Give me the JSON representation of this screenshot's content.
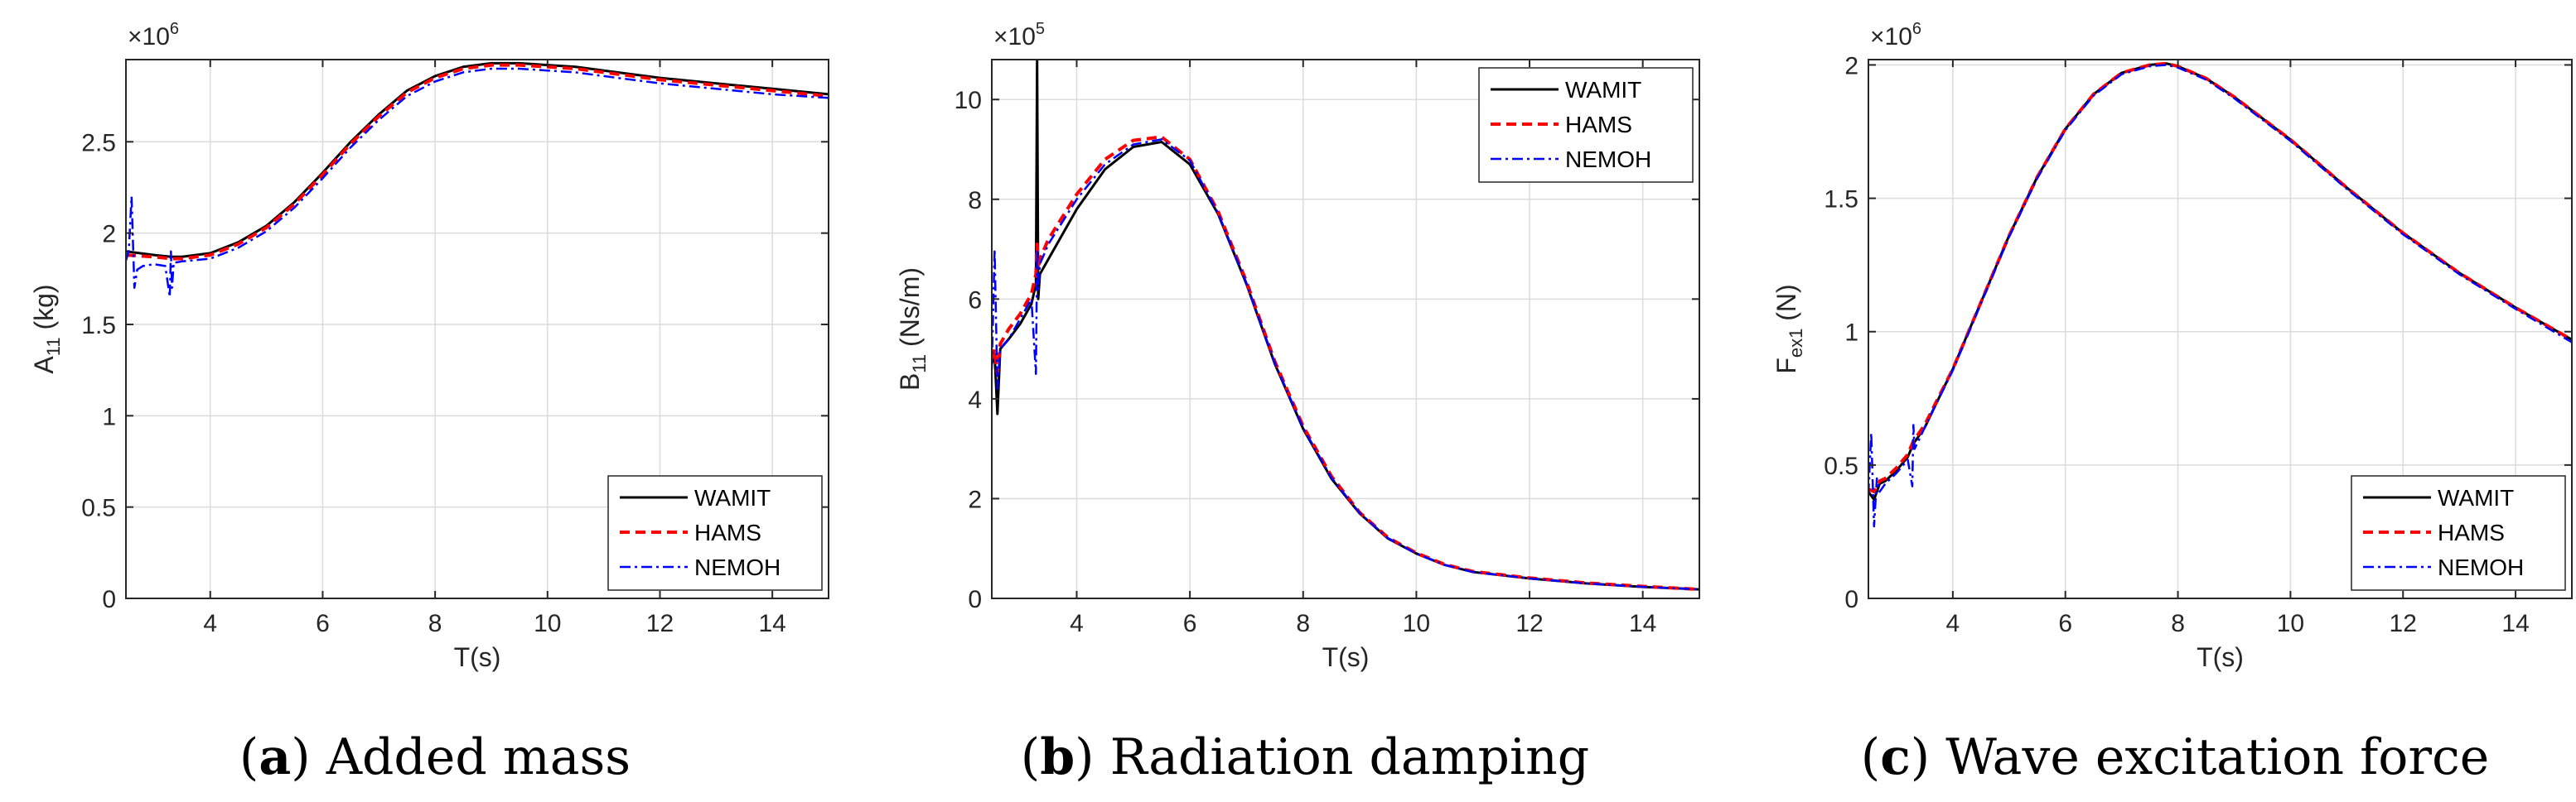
{
  "colors": {
    "WAMIT": "#000000",
    "HAMS": "#ff0000",
    "NEMOH": "#0000ff"
  },
  "chart_data": [
    {
      "type": "line",
      "caption": {
        "open": "(",
        "letter": "a",
        "close": ")",
        "text": " Added mass"
      },
      "multiplier": {
        "base": "×10",
        "exp": "6"
      },
      "xlabel": "T(s)",
      "ylabel": {
        "main": "A",
        "sub": "11",
        "unit": " (kg)"
      },
      "xlim": [
        2.5,
        15
      ],
      "ylim": [
        0,
        2950000
      ],
      "xticks": [
        4,
        6,
        8,
        10,
        12,
        14
      ],
      "xtick_labels": [
        "4",
        "6",
        "8",
        "10",
        "12",
        "14"
      ],
      "yticks": [
        0,
        500000,
        1000000,
        1500000,
        2000000,
        2500000
      ],
      "ytick_labels": [
        "0",
        "0.5",
        "1",
        "1.5",
        "2",
        "2.5"
      ],
      "grid": true,
      "legend_position": "bottom-right",
      "series": [
        {
          "name": "WAMIT",
          "style": "solid",
          "x": [
            2.5,
            3.0,
            3.3,
            3.5,
            4.0,
            4.5,
            5.0,
            5.5,
            6.0,
            6.5,
            7.0,
            7.5,
            8.0,
            8.5,
            9.0,
            9.5,
            10.0,
            10.5,
            11.0,
            12.0,
            13.0,
            14.0,
            15.0
          ],
          "y": [
            1900000,
            1880000,
            1870000,
            1870000,
            1890000,
            1950000,
            2040000,
            2170000,
            2330000,
            2500000,
            2650000,
            2780000,
            2860000,
            2910000,
            2930000,
            2930000,
            2920000,
            2910000,
            2890000,
            2850000,
            2820000,
            2790000,
            2760000
          ]
        },
        {
          "name": "HAMS",
          "style": "dashed",
          "x": [
            2.5,
            3.0,
            3.3,
            3.5,
            4.0,
            4.5,
            5.0,
            5.5,
            6.0,
            6.5,
            7.0,
            7.5,
            8.0,
            8.5,
            9.0,
            9.5,
            10.0,
            10.5,
            11.0,
            12.0,
            13.0,
            14.0,
            15.0
          ],
          "y": [
            1880000,
            1870000,
            1860000,
            1860000,
            1880000,
            1940000,
            2030000,
            2160000,
            2320000,
            2490000,
            2640000,
            2770000,
            2850000,
            2900000,
            2920000,
            2920000,
            2910000,
            2900000,
            2880000,
            2840000,
            2810000,
            2780000,
            2750000
          ]
        },
        {
          "name": "NEMOH",
          "style": "dashdot",
          "x": [
            2.5,
            2.55,
            2.6,
            2.65,
            2.7,
            2.8,
            3.0,
            3.2,
            3.28,
            3.3,
            3.32,
            3.35,
            3.4,
            3.5,
            4.0,
            4.5,
            5.0,
            5.5,
            6.0,
            6.5,
            7.0,
            7.5,
            8.0,
            8.5,
            9.0,
            9.5,
            10.0,
            10.5,
            11.0,
            12.0,
            13.0,
            14.0,
            15.0
          ],
          "y": [
            1850000,
            1900000,
            2200000,
            1700000,
            1800000,
            1820000,
            1830000,
            1820000,
            1650000,
            1900000,
            1700000,
            1840000,
            1840000,
            1845000,
            1860000,
            1920000,
            2010000,
            2140000,
            2300000,
            2470000,
            2620000,
            2750000,
            2830000,
            2880000,
            2900000,
            2900000,
            2890000,
            2880000,
            2860000,
            2820000,
            2790000,
            2760000,
            2740000
          ]
        }
      ]
    },
    {
      "type": "line",
      "caption": {
        "open": "(",
        "letter": "b",
        "close": ")",
        "text": " Radiation damping"
      },
      "multiplier": {
        "base": "×10",
        "exp": "5"
      },
      "xlabel": "T(s)",
      "ylabel": {
        "main": "B",
        "sub": "11",
        "unit": " (Ns/m)"
      },
      "xlim": [
        2.5,
        15
      ],
      "ylim": [
        0,
        1080000
      ],
      "xticks": [
        4,
        6,
        8,
        10,
        12,
        14
      ],
      "xtick_labels": [
        "4",
        "6",
        "8",
        "10",
        "12",
        "14"
      ],
      "yticks": [
        0,
        200000,
        400000,
        600000,
        800000,
        1000000
      ],
      "ytick_labels": [
        "0",
        "2",
        "4",
        "6",
        "8",
        "10"
      ],
      "grid": true,
      "legend_position": "top-right",
      "series": [
        {
          "name": "WAMIT",
          "style": "solid",
          "x": [
            2.5,
            2.55,
            2.6,
            2.65,
            2.8,
            3.0,
            3.2,
            3.28,
            3.3,
            3.32,
            3.35,
            3.5,
            4.0,
            4.5,
            5.0,
            5.5,
            6.0,
            6.5,
            7.0,
            7.5,
            8.0,
            8.5,
            9.0,
            9.5,
            10.0,
            10.5,
            11.0,
            12.0,
            13.0,
            14.0,
            15.0
          ],
          "y": [
            470000,
            490000,
            370000,
            500000,
            520000,
            550000,
            590000,
            630000,
            1080000,
            600000,
            650000,
            680000,
            780000,
            860000,
            905000,
            915000,
            870000,
            770000,
            630000,
            470000,
            340000,
            240000,
            170000,
            120000,
            90000,
            67000,
            53000,
            40000,
            30000,
            23000,
            18000
          ]
        },
        {
          "name": "HAMS",
          "style": "dashed",
          "x": [
            2.5,
            2.55,
            2.6,
            2.65,
            2.8,
            3.0,
            3.2,
            3.28,
            3.3,
            3.32,
            3.35,
            3.5,
            4.0,
            4.5,
            5.0,
            5.5,
            6.0,
            6.5,
            7.0,
            7.5,
            8.0,
            8.5,
            9.0,
            9.5,
            10.0,
            10.5,
            11.0,
            12.0,
            13.0,
            14.0,
            15.0
          ],
          "y": [
            480000,
            500000,
            450000,
            510000,
            540000,
            570000,
            610000,
            650000,
            710000,
            660000,
            680000,
            720000,
            810000,
            880000,
            918000,
            925000,
            880000,
            775000,
            635000,
            475000,
            345000,
            245000,
            172000,
            122000,
            91000,
            68000,
            54000,
            41000,
            31000,
            24000,
            18000
          ]
        },
        {
          "name": "NEMOH",
          "style": "dashdot",
          "x": [
            2.5,
            2.55,
            2.6,
            2.65,
            2.8,
            3.0,
            3.2,
            3.28,
            3.3,
            3.32,
            3.35,
            3.5,
            4.0,
            4.5,
            5.0,
            5.5,
            6.0,
            6.5,
            7.0,
            7.5,
            8.0,
            8.5,
            9.0,
            9.5,
            10.0,
            10.5,
            11.0,
            12.0,
            13.0,
            14.0,
            15.0
          ],
          "y": [
            460000,
            700000,
            420000,
            500000,
            520000,
            560000,
            600000,
            450000,
            700000,
            620000,
            670000,
            710000,
            800000,
            870000,
            910000,
            920000,
            878000,
            772000,
            632000,
            472000,
            342000,
            242000,
            171000,
            121000,
            90000,
            67000,
            53000,
            40000,
            30000,
            23000,
            18000
          ]
        }
      ]
    },
    {
      "type": "line",
      "caption": {
        "open": "(",
        "letter": "c",
        "close": ")",
        "text": " Wave excitation force"
      },
      "multiplier": {
        "base": "×10",
        "exp": "6"
      },
      "xlabel": "T(s)",
      "ylabel": {
        "main": "F",
        "sub": "ex1",
        "unit": " (N)"
      },
      "xlim": [
        2.5,
        15
      ],
      "ylim": [
        0,
        2020000
      ],
      "xticks": [
        4,
        6,
        8,
        10,
        12,
        14
      ],
      "xtick_labels": [
        "4",
        "6",
        "8",
        "10",
        "12",
        "14"
      ],
      "yticks": [
        0,
        500000,
        1000000,
        1500000,
        2000000
      ],
      "ytick_labels": [
        "0",
        "0.5",
        "1",
        "1.5",
        "2"
      ],
      "grid": true,
      "legend_position": "bottom-right",
      "series": [
        {
          "name": "WAMIT",
          "style": "solid",
          "x": [
            2.5,
            2.6,
            2.7,
            2.8,
            3.0,
            3.2,
            3.3,
            3.5,
            4.0,
            4.5,
            5.0,
            5.5,
            6.0,
            6.5,
            7.0,
            7.5,
            7.8,
            8.0,
            8.5,
            9.0,
            9.5,
            10.0,
            10.5,
            11.0,
            12.0,
            13.0,
            14.0,
            15.0
          ],
          "y": [
            400000,
            370000,
            430000,
            440000,
            480000,
            530000,
            580000,
            640000,
            860000,
            1110000,
            1360000,
            1580000,
            1760000,
            1890000,
            1970000,
            2000000,
            2005000,
            1995000,
            1950000,
            1880000,
            1800000,
            1720000,
            1630000,
            1540000,
            1370000,
            1220000,
            1090000,
            970000
          ]
        },
        {
          "name": "HAMS",
          "style": "dashed",
          "x": [
            2.5,
            2.6,
            2.7,
            2.8,
            3.0,
            3.2,
            3.3,
            3.5,
            4.0,
            4.5,
            5.0,
            5.5,
            6.0,
            6.5,
            7.0,
            7.5,
            7.8,
            8.0,
            8.5,
            9.0,
            9.5,
            10.0,
            10.5,
            11.0,
            12.0,
            13.0,
            14.0,
            15.0
          ],
          "y": [
            410000,
            400000,
            440000,
            450000,
            490000,
            540000,
            590000,
            650000,
            860000,
            1110000,
            1360000,
            1580000,
            1760000,
            1890000,
            1970000,
            2000000,
            2005000,
            1995000,
            1950000,
            1880000,
            1800000,
            1720000,
            1630000,
            1540000,
            1370000,
            1220000,
            1090000,
            970000
          ]
        },
        {
          "name": "NEMOH",
          "style": "dashdot",
          "x": [
            2.5,
            2.55,
            2.6,
            2.65,
            2.7,
            2.8,
            3.0,
            3.2,
            3.28,
            3.3,
            3.32,
            3.5,
            4.0,
            4.5,
            5.0,
            5.5,
            6.0,
            6.5,
            7.0,
            7.5,
            7.8,
            8.0,
            8.5,
            9.0,
            9.5,
            10.0,
            10.5,
            11.0,
            12.0,
            13.0,
            14.0,
            15.0
          ],
          "y": [
            390000,
            620000,
            270000,
            450000,
            400000,
            430000,
            470000,
            520000,
            420000,
            650000,
            560000,
            640000,
            855000,
            1105000,
            1355000,
            1575000,
            1755000,
            1885000,
            1965000,
            1995000,
            2000000,
            1990000,
            1945000,
            1875000,
            1795000,
            1715000,
            1625000,
            1535000,
            1365000,
            1215000,
            1085000,
            960000
          ]
        }
      ]
    }
  ]
}
